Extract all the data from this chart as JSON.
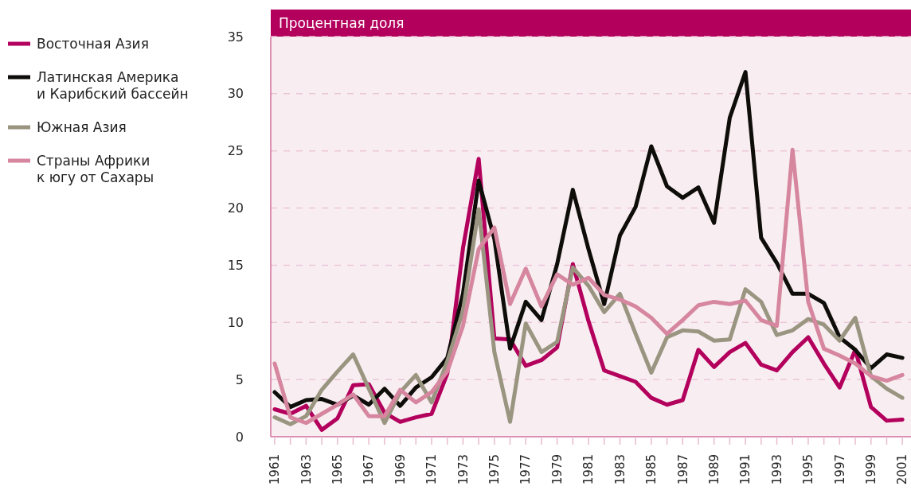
{
  "chart_data": {
    "type": "line",
    "title": "Процентная доля",
    "x": [
      1961,
      1962,
      1963,
      1964,
      1965,
      1966,
      1967,
      1968,
      1969,
      1970,
      1971,
      1972,
      1973,
      1974,
      1975,
      1976,
      1977,
      1978,
      1979,
      1980,
      1981,
      1982,
      1983,
      1984,
      1985,
      1986,
      1987,
      1988,
      1989,
      1990,
      1991,
      1992,
      1993,
      1994,
      1995,
      1996,
      1997,
      1998,
      1999,
      2000,
      2001
    ],
    "series": [
      {
        "name": "Восточная Азия",
        "color": "#b3005c",
        "values": [
          2.4,
          2.0,
          2.7,
          0.6,
          1.6,
          4.5,
          4.6,
          2.1,
          1.3,
          1.7,
          2.0,
          5.5,
          16.5,
          24.3,
          8.6,
          8.5,
          6.2,
          6.7,
          7.8,
          15.1,
          10.1,
          5.8,
          5.3,
          4.8,
          3.4,
          2.8,
          3.2,
          7.6,
          6.1,
          7.4,
          8.2,
          6.3,
          5.8,
          7.4,
          8.7,
          6.4,
          4.3,
          7.6,
          2.6,
          1.4,
          1.5
        ]
      },
      {
        "name": "Латинская Америка\nи Карибский бассейн",
        "color": "#0f0d0a",
        "values": [
          3.9,
          2.6,
          3.2,
          3.3,
          2.8,
          3.6,
          2.8,
          4.2,
          2.7,
          4.3,
          5.2,
          6.9,
          12.5,
          22.4,
          17.3,
          7.7,
          11.8,
          10.2,
          15.1,
          21.6,
          16.4,
          11.6,
          17.6,
          20.1,
          25.4,
          21.9,
          20.9,
          21.8,
          18.7,
          27.9,
          31.9,
          17.4,
          15.2,
          12.5,
          12.5,
          11.7,
          8.7,
          7.6,
          6.0,
          7.2,
          6.9
        ]
      },
      {
        "name": "Южная Азия",
        "color": "#9a9580",
        "values": [
          1.7,
          1.1,
          1.8,
          4.1,
          5.7,
          7.2,
          4.2,
          1.2,
          3.9,
          5.4,
          3.0,
          6.6,
          11.0,
          19.9,
          7.4,
          1.3,
          9.9,
          7.4,
          8.3,
          14.8,
          13.2,
          10.9,
          12.5,
          9.0,
          5.6,
          8.7,
          9.3,
          9.2,
          8.4,
          8.5,
          12.9,
          11.8,
          8.9,
          9.3,
          10.3,
          9.8,
          8.4,
          10.4,
          5.3,
          4.2,
          3.4
        ]
      },
      {
        "name": "Страны Африки\nк югу от Сахары",
        "color": "#d6869f",
        "values": [
          6.4,
          1.7,
          1.2,
          2.0,
          2.8,
          3.7,
          1.8,
          1.8,
          4.1,
          3.0,
          3.9,
          5.7,
          9.7,
          16.4,
          18.3,
          11.6,
          14.7,
          11.4,
          14.2,
          13.3,
          13.9,
          12.4,
          12.0,
          11.4,
          10.4,
          9.0,
          10.2,
          11.5,
          11.8,
          11.6,
          11.9,
          10.2,
          9.7,
          25.1,
          11.8,
          7.7,
          7.1,
          6.4,
          5.3,
          4.9,
          5.4
        ]
      }
    ],
    "xlim": [
      1960.8,
      2001.55
    ],
    "xticks": [
      1961,
      {
        "value": 1962,
        "label": null
      },
      1963,
      {
        "value": 1964,
        "label": null
      },
      1965,
      {
        "value": 1966,
        "label": null
      },
      1967,
      {
        "value": 1968,
        "label": null
      },
      1969,
      {
        "value": 1970,
        "label": null
      },
      1971,
      {
        "value": 1972,
        "label": null
      },
      1973,
      {
        "value": 1974,
        "label": null
      },
      1975,
      {
        "value": 1976,
        "label": null
      },
      1977,
      {
        "value": 1978,
        "label": null
      },
      1979,
      {
        "value": 1980,
        "label": null
      },
      1981,
      {
        "value": 1982,
        "label": null
      },
      1983,
      {
        "value": 1984,
        "label": null
      },
      1985,
      {
        "value": 1986,
        "label": null
      },
      1987,
      {
        "value": 1988,
        "label": null
      },
      1989,
      {
        "value": 1990,
        "label": null
      },
      1991,
      {
        "value": 1992,
        "label": null
      },
      1993,
      {
        "value": 1994,
        "label": null
      },
      1995,
      {
        "value": 1996,
        "label": null
      },
      1997,
      {
        "value": 1998,
        "label": null
      },
      1999,
      {
        "value": 2000,
        "label": null
      },
      2001
    ],
    "ylim": [
      0,
      35
    ],
    "yticks": [
      0,
      5,
      10,
      15,
      20,
      25,
      30,
      35
    ],
    "grid": "y",
    "legend": "left",
    "marker": "none",
    "line_style": "solid"
  }
}
